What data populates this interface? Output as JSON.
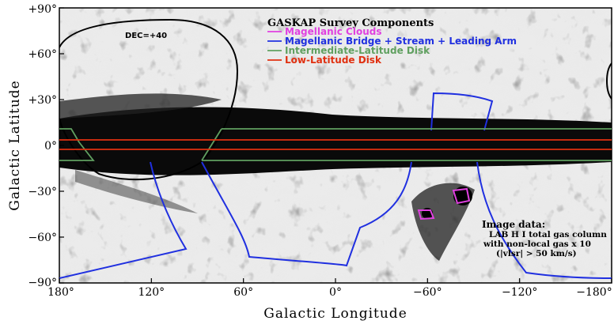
{
  "chart_data": {
    "type": "map",
    "title": "GASKAP Survey Components",
    "xlabel": "Galactic Longitude",
    "ylabel": "Galactic Latitude",
    "xlim": [
      180,
      -180
    ],
    "ylim": [
      -90,
      90
    ],
    "xticks": [
      "180°",
      "120°",
      "60°",
      "0°",
      "−60°",
      "−120°",
      "−180°"
    ],
    "xtick_values": [
      180,
      120,
      60,
      0,
      -60,
      -120,
      -180
    ],
    "yticks": [
      "+90°",
      "+60°",
      "+30°",
      "0°",
      "−30°",
      "−60°",
      "−90°"
    ],
    "ytick_values": [
      90,
      60,
      30,
      0,
      -30,
      -60,
      -90
    ],
    "legend_placement": "top-center",
    "series": [
      {
        "name": "Magellanic Clouds",
        "color": "#e040e0"
      },
      {
        "name": "Magellanic Bridge + Stream + Leading Arm",
        "color": "#2030e0"
      },
      {
        "name": "Intermediate-Latitude Disk",
        "color": "#60a060"
      },
      {
        "name": "Low-Latitude Disk",
        "color": "#e03010"
      }
    ],
    "annotations": {
      "dec_label": "DEC=+40",
      "image_data_title": "Image data:",
      "image_data_lines": [
        "LAB H I total gas column",
        "with non-local gas x 10",
        "(|vlsr| > 50 km/s)"
      ]
    },
    "regions": {
      "low_latitude_disk_b": [
        -2.5,
        2.5
      ],
      "intermediate_latitude_disk_b": [
        -10,
        10
      ],
      "magellanic_clouds": [
        {
          "name": "LMC",
          "l": [
            -75,
            -85
          ],
          "b": [
            -30,
            -37
          ]
        },
        {
          "name": "SMC",
          "l": [
            -58,
            -65
          ],
          "b": [
            -43,
            -47
          ]
        }
      ]
    },
    "background": "grayscale all-sky HI column density map (Hammer-Aitoff projection)"
  }
}
